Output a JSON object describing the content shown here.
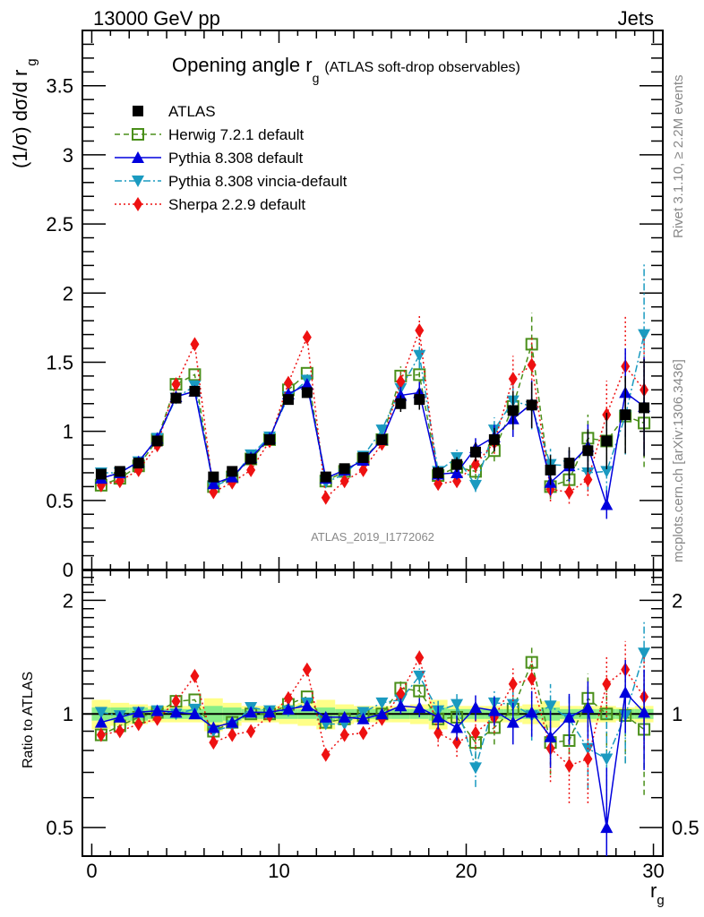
{
  "header": {
    "left": "13000 GeV pp",
    "right": "Jets"
  },
  "side_labels": {
    "rivet": "Rivet 3.1.10, ≥ 2.2M events",
    "mcplots": "mcplots.cern.ch [arXiv:1306.3436]"
  },
  "watermark": "ATLAS_2019_I1772062",
  "chart_data": [
    {
      "type": "scatter",
      "title": "Opening angle r",
      "title_sub": "g",
      "title_suffix": "(ATLAS soft-drop observables)",
      "xlabel": "r",
      "xlabel_sub": "g",
      "ylabel": "(1/σ) dσ/d r",
      "ylabel_sub": "g",
      "xlim": [
        -0.5,
        30.5
      ],
      "ylim": [
        0,
        3.9
      ],
      "x_ticks": [
        "0",
        "10",
        "20",
        "30"
      ],
      "y_ticks": [
        "0",
        "0.5",
        "1",
        "1.5",
        "2",
        "2.5",
        "3",
        "3.5"
      ],
      "legend_position": "top-left",
      "x": [
        0.5,
        1.5,
        2.5,
        3.5,
        4.5,
        5.5,
        6.5,
        7.5,
        8.5,
        9.5,
        10.5,
        11.5,
        12.5,
        13.5,
        14.5,
        15.5,
        16.5,
        17.5,
        18.5,
        19.5,
        20.5,
        21.5,
        22.5,
        23.5,
        24.5,
        25.5,
        26.5,
        27.5,
        28.5,
        29.5
      ],
      "series": [
        {
          "name": "ATLAS",
          "color": "#000000",
          "marker": "square-filled",
          "line": "none",
          "values": [
            0.69,
            0.71,
            0.77,
            0.93,
            1.24,
            1.29,
            0.67,
            0.71,
            0.8,
            0.94,
            1.23,
            1.28,
            0.67,
            0.73,
            0.81,
            0.94,
            1.2,
            1.23,
            0.7,
            0.76,
            0.85,
            0.94,
            1.15,
            1.19,
            0.72,
            0.77,
            0.86,
            0.93,
            1.12,
            1.17
          ]
        },
        {
          "name": "Herwig 7.2.1 default",
          "color": "#4a8f1a",
          "marker": "square-open",
          "line": "dashed",
          "values": [
            0.61,
            0.66,
            0.75,
            0.94,
            1.34,
            1.41,
            0.6,
            0.67,
            0.8,
            0.94,
            1.3,
            1.42,
            0.64,
            0.71,
            0.8,
            0.94,
            1.4,
            1.41,
            0.68,
            0.74,
            0.71,
            0.86,
            1.18,
            1.63,
            0.6,
            0.65,
            0.95,
            0.93,
            1.11,
            1.06
          ]
        },
        {
          "name": "Pythia 8.308 default",
          "color": "#0000dd",
          "marker": "triangle-up",
          "line": "solid",
          "values": [
            0.66,
            0.7,
            0.78,
            0.95,
            1.25,
            1.29,
            0.62,
            0.67,
            0.81,
            0.95,
            1.27,
            1.34,
            0.66,
            0.72,
            0.79,
            0.94,
            1.26,
            1.28,
            0.69,
            0.7,
            0.88,
            0.96,
            1.09,
            1.2,
            0.63,
            0.75,
            0.89,
            0.47,
            1.28,
            1.18
          ]
        },
        {
          "name": "Pythia 8.308 vincia-default",
          "color": "#1a9ac0",
          "marker": "triangle-down",
          "line": "dashdot",
          "values": [
            0.7,
            0.7,
            0.78,
            0.95,
            1.24,
            1.33,
            0.6,
            0.66,
            0.83,
            0.96,
            1.25,
            1.37,
            0.63,
            0.69,
            0.82,
            1.01,
            1.31,
            1.55,
            0.71,
            0.81,
            0.61,
            1.01,
            1.22,
            1.18,
            0.76,
            0.75,
            0.7,
            0.71,
            1.11,
            1.7
          ]
        },
        {
          "name": "Sherpa 2.2.9 default",
          "color": "#ee1111",
          "marker": "diamond",
          "line": "dotted",
          "values": [
            0.61,
            0.64,
            0.72,
            0.9,
            1.34,
            1.63,
            0.56,
            0.63,
            0.72,
            0.93,
            1.35,
            1.68,
            0.52,
            0.64,
            0.72,
            0.91,
            1.36,
            1.73,
            0.62,
            0.64,
            0.76,
            0.92,
            1.38,
            1.48,
            0.58,
            0.56,
            0.65,
            1.12,
            1.47,
            1.3
          ]
        }
      ]
    },
    {
      "type": "scatter",
      "title": "",
      "xlabel": "r",
      "xlabel_sub": "g",
      "ylabel": "Ratio to ATLAS",
      "yscale": "log",
      "ylim": [
        0.42,
        2.4
      ],
      "xlim": [
        -0.5,
        30.5
      ],
      "y_ticks": [
        "0.5",
        "1",
        "2"
      ],
      "x_ticks": [
        "0",
        "10",
        "20",
        "30"
      ],
      "reference_line": 1,
      "uncertainty_band": {
        "inner_color": "#88ee88",
        "outer_color": "#ffff88",
        "inner": [
          0.04,
          0.04,
          0.04,
          0.03,
          0.03,
          0.03,
          0.05,
          0.04,
          0.03,
          0.03,
          0.03,
          0.03,
          0.04,
          0.03,
          0.03,
          0.03,
          0.03,
          0.03,
          0.04,
          0.03,
          0.03,
          0.03,
          0.03,
          0.03,
          0.04,
          0.03,
          0.03,
          0.03,
          0.03,
          0.03
        ],
        "outer": [
          0.09,
          0.07,
          0.06,
          0.05,
          0.05,
          0.05,
          0.1,
          0.07,
          0.05,
          0.05,
          0.06,
          0.07,
          0.09,
          0.06,
          0.05,
          0.05,
          0.05,
          0.06,
          0.09,
          0.05,
          0.05,
          0.05,
          0.05,
          0.06,
          0.08,
          0.05,
          0.05,
          0.05,
          0.04,
          0.05
        ]
      },
      "series": [
        {
          "name": "Herwig 7.2.1 default",
          "values": [
            0.88,
            0.93,
            0.98,
            1.01,
            1.08,
            1.09,
            0.9,
            0.95,
            1.0,
            1.0,
            1.06,
            1.11,
            0.95,
            0.97,
            0.99,
            1.0,
            1.17,
            1.15,
            0.97,
            0.98,
            0.84,
            0.92,
            1.03,
            1.37,
            0.84,
            0.85,
            1.1,
            1.0,
            0.99,
            0.91
          ]
        },
        {
          "name": "Pythia 8.308 default",
          "values": [
            0.95,
            0.98,
            1.01,
            1.02,
            1.01,
            1.0,
            0.92,
            0.95,
            1.01,
            1.01,
            1.03,
            1.05,
            0.98,
            0.98,
            0.97,
            1.0,
            1.05,
            1.04,
            0.98,
            0.92,
            1.04,
            1.02,
            0.95,
            1.01,
            0.87,
            0.98,
            1.04,
            0.5,
            1.14,
            1.01
          ]
        },
        {
          "name": "Pythia 8.308 vincia-default",
          "values": [
            1.01,
            0.99,
            1.01,
            1.02,
            1.0,
            1.03,
            0.9,
            0.93,
            1.04,
            1.02,
            1.02,
            1.07,
            0.94,
            0.94,
            1.01,
            1.07,
            1.09,
            1.26,
            1.02,
            1.06,
            0.72,
            1.07,
            1.06,
            0.99,
            1.05,
            0.97,
            0.81,
            0.76,
            0.99,
            1.45
          ]
        },
        {
          "name": "Sherpa 2.2.9 default",
          "values": [
            0.88,
            0.9,
            0.94,
            0.97,
            1.08,
            1.26,
            0.84,
            0.88,
            0.9,
            0.99,
            1.1,
            1.31,
            0.78,
            0.88,
            0.89,
            0.97,
            1.13,
            1.41,
            0.89,
            0.84,
            0.89,
            0.98,
            1.2,
            1.24,
            0.81,
            0.73,
            0.76,
            1.2,
            1.31,
            1.11
          ]
        }
      ],
      "errors": [
        0.02,
        0.02,
        0.02,
        0.02,
        0.02,
        0.02,
        0.02,
        0.02,
        0.02,
        0.02,
        0.02,
        0.02,
        0.03,
        0.03,
        0.03,
        0.04,
        0.05,
        0.06,
        0.07,
        0.07,
        0.08,
        0.09,
        0.12,
        0.14,
        0.15,
        0.15,
        0.18,
        0.22,
        0.25,
        0.3
      ]
    }
  ]
}
